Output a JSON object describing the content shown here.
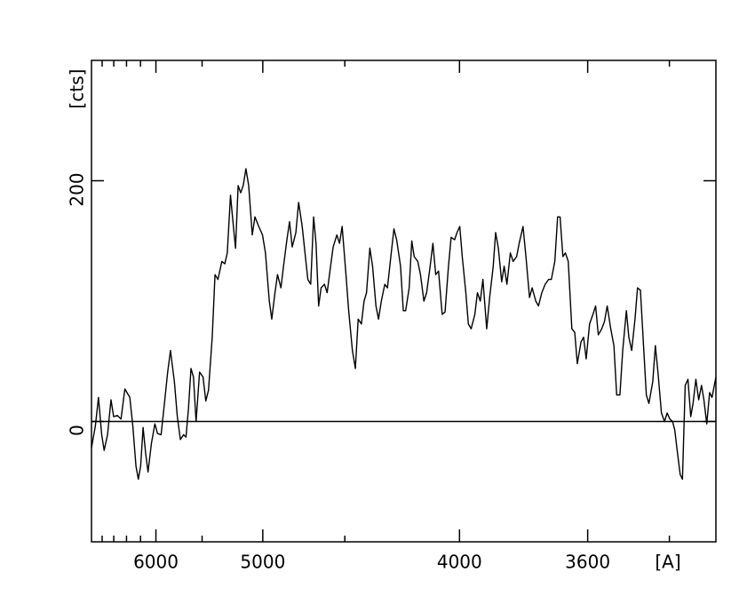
{
  "chart_data": {
    "type": "line",
    "xlabel": "[A]",
    "ylabel": "[cts]",
    "xscale": "inverse-square",
    "xlim": [
      7000,
      3300
    ],
    "ylim": [
      -100,
      300
    ],
    "xticks": [
      6000,
      5000,
      4000,
      3600
    ],
    "xminorticks": [
      6800,
      6600,
      6400,
      6200,
      5500,
      4500,
      3400
    ],
    "yticks": [
      0,
      200
    ],
    "zero_line": true,
    "color": "#000000",
    "x": [
      7000,
      6926,
      6867,
      6808,
      6764,
      6705,
      6646,
      6602,
      6543,
      6484,
      6425,
      6351,
      6307,
      6263,
      6230,
      6198,
      6165,
      6132,
      6100,
      6056,
      6013,
      5980,
      5937,
      5893,
      5860,
      5828,
      5784,
      5752,
      5719,
      5685,
      5660,
      5634,
      5609,
      5584,
      5558,
      5524,
      5491,
      5465,
      5440,
      5406,
      5381,
      5355,
      5321,
      5296,
      5275,
      5248,
      5228,
      5207,
      5186,
      5166,
      5146,
      5125,
      5104,
      5077,
      5057,
      5029,
      5002,
      4981,
      4954,
      4937,
      4915,
      4898,
      4875,
      4858,
      4836,
      4819,
      4802,
      4779,
      4762,
      4740,
      4723,
      4706,
      4689,
      4672,
      4658,
      4643,
      4629,
      4610,
      4595,
      4576,
      4562,
      4542,
      4528,
      4514,
      4494,
      4480,
      4461,
      4446,
      4432,
      4416,
      4403,
      4391,
      4375,
      4362,
      4346,
      4334,
      4321,
      4305,
      4293,
      4276,
      4264,
      4252,
      4235,
      4223,
      4213,
      4198,
      4187,
      4177,
      4162,
      4151,
      4137,
      4126,
      4112,
      4101,
      4090,
      4079,
      4065,
      4054,
      4041,
      4031,
      4018,
      4009,
      3999,
      3990,
      3977,
      3968,
      3958,
      3945,
      3936,
      3926,
      3917,
      3904,
      3894,
      3882,
      3874,
      3865,
      3854,
      3846,
      3837,
      3826,
      3817,
      3806,
      3798,
      3786,
      3777,
      3766,
      3758,
      3747,
      3739,
      3729,
      3719,
      3709,
      3701,
      3691,
      3683,
      3676,
      3668,
      3661,
      3653,
      3643,
      3635,
      3628,
      3618,
      3611,
      3604,
      3595,
      3586,
      3579,
      3572,
      3563,
      3556,
      3549,
      3540,
      3532,
      3525,
      3517,
      3510,
      3501,
      3495,
      3488,
      3480,
      3474,
      3467,
      3459,
      3453,
      3447,
      3438,
      3432,
      3426,
      3418,
      3411,
      3405,
      3399,
      3393,
      3388,
      3382,
      3376,
      3371,
      3365,
      3359,
      3353,
      3348,
      3342,
      3336,
      3330,
      3325,
      3319,
      3313,
      3308,
      3300
    ],
    "values": [
      -22,
      -4,
      20,
      -11,
      -24,
      -11,
      18,
      4,
      5,
      2,
      27,
      20,
      -4,
      -37,
      -48,
      -37,
      -5,
      -26,
      -42,
      -18,
      -2,
      -10,
      -11,
      18,
      41,
      59,
      33,
      4,
      -15,
      -11,
      -13,
      11,
      44,
      37,
      0,
      41,
      37,
      17,
      26,
      70,
      122,
      118,
      133,
      131,
      140,
      188,
      166,
      144,
      196,
      190,
      196,
      210,
      196,
      155,
      170,
      162,
      155,
      140,
      100,
      85,
      107,
      122,
      111,
      129,
      151,
      166,
      145,
      157,
      182,
      162,
      140,
      118,
      114,
      170,
      148,
      96,
      111,
      114,
      107,
      129,
      145,
      155,
      148,
      162,
      122,
      92,
      59,
      44,
      85,
      81,
      100,
      107,
      144,
      129,
      96,
      85,
      100,
      114,
      111,
      140,
      160,
      151,
      129,
      92,
      92,
      111,
      150,
      137,
      133,
      122,
      100,
      107,
      129,
      148,
      122,
      125,
      89,
      91,
      129,
      153,
      151,
      157,
      162,
      137,
      107,
      81,
      77,
      89,
      107,
      100,
      118,
      77,
      103,
      129,
      157,
      144,
      116,
      129,
      114,
      140,
      133,
      137,
      148,
      162,
      137,
      103,
      111,
      100,
      96,
      107,
      114,
      118,
      118,
      133,
      170,
      170,
      137,
      140,
      133,
      77,
      74,
      48,
      66,
      70,
      52,
      81,
      89,
      96,
      72,
      77,
      83,
      96,
      77,
      63,
      22,
      22,
      59,
      92,
      70,
      59,
      85,
      111,
      109,
      59,
      22,
      15,
      33,
      63,
      41,
      7,
      0,
      7,
      2,
      0,
      -7,
      -26,
      -44,
      -48,
      30,
      35,
      4,
      15,
      35,
      18,
      30,
      18,
      -2,
      24,
      20,
      37
    ]
  }
}
